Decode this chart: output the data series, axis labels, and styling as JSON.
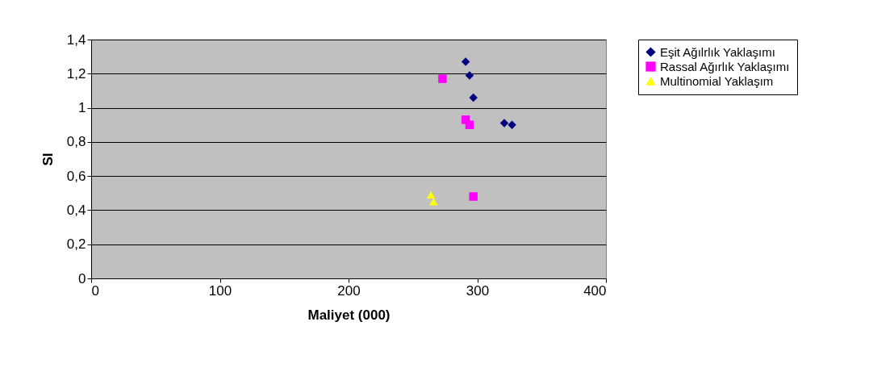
{
  "chart_data": {
    "type": "scatter",
    "xlabel": "Maliyet (000)",
    "ylabel": "SI",
    "xlim": [
      0,
      400
    ],
    "xticks": [
      0,
      100,
      200,
      300,
      400
    ],
    "ylim": [
      0,
      1.4
    ],
    "yticks": [
      {
        "value": 0,
        "label": "0"
      },
      {
        "value": 0.2,
        "label": "0,2"
      },
      {
        "value": 0.4,
        "label": "0,4"
      },
      {
        "value": 0.6,
        "label": "0,6"
      },
      {
        "value": 0.8,
        "label": "0,8"
      },
      {
        "value": 1,
        "label": "1"
      },
      {
        "value": 1.2,
        "label": "1,2"
      },
      {
        "value": 1.4,
        "label": "1,4"
      }
    ],
    "grid": "y",
    "legend": "right",
    "series": [
      {
        "name": "Eşit Ağılrlık Yaklaşımı",
        "color": "#000080",
        "marker": "diamond",
        "x": [
          291,
          294,
          297,
          321,
          327
        ],
        "values": [
          1.27,
          1.19,
          1.06,
          0.91,
          0.9
        ]
      },
      {
        "name": "Rassal Ağırlık Yaklaşımı",
        "color": "#ff00ff",
        "marker": "square",
        "x": [
          273,
          291,
          294,
          297
        ],
        "values": [
          1.17,
          0.93,
          0.9,
          0.48
        ]
      },
      {
        "name": "Multinomial Yaklaşım",
        "color": "#ffff00",
        "marker": "triangle",
        "x": [
          264,
          266
        ],
        "values": [
          0.49,
          0.45
        ]
      }
    ]
  }
}
